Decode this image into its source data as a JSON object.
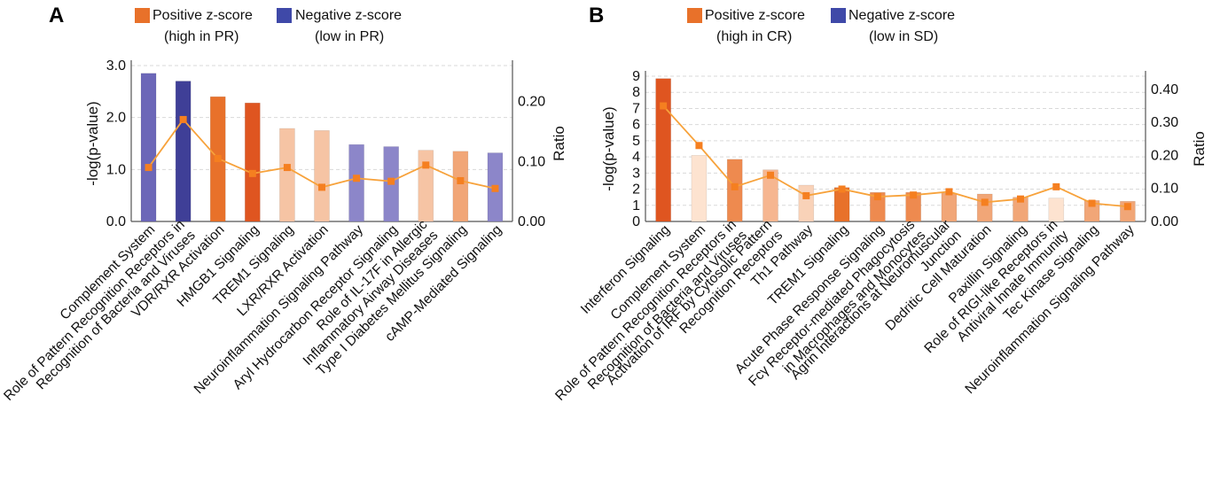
{
  "panels": [
    {
      "letter": "A",
      "legend": {
        "positive": {
          "line1": "Positive z-score",
          "line2": "(high in PR)"
        },
        "negative": {
          "line1": "Negative z-score",
          "line2": "(low in PR)"
        }
      }
    },
    {
      "letter": "B",
      "legend": {
        "positive": {
          "line1": "Positive z-score",
          "line2": "(high in CR)"
        },
        "negative": {
          "line1": "Negative z-score",
          "line2": "(low in SD)"
        }
      }
    }
  ],
  "colors": {
    "positive_legend": "#e8712a",
    "negative_legend": "#3f49a8",
    "ratio_line": "#f7a23b",
    "ratio_marker": "#f57f20"
  },
  "chart_data": [
    {
      "type": "bar",
      "ylabel": "-log(p-value)",
      "y2label": "Ratio",
      "ylim": [
        0,
        3.0
      ],
      "yticks": [
        "0.0",
        "1.0",
        "2.0",
        "3.0"
      ],
      "y2lim": [
        0,
        0.26
      ],
      "y2ticks": [
        "0.00",
        "0.10",
        "0.20"
      ],
      "grid": true,
      "categories": [
        [
          "Complement System"
        ],
        [
          "Role of Pattern Recognition Receptors in",
          "Recognition of Bacteria and Viruses"
        ],
        [
          "VDR/RXR Activation"
        ],
        [
          "HMGB1 Signaling"
        ],
        [
          "TREM1 Signaling"
        ],
        [
          "LXR/RXR Activation"
        ],
        [
          "Neuroinflammation Signaling Pathway"
        ],
        [
          "Aryl Hydrocarbon Receptor Signaling"
        ],
        [
          "Role of IL-17F in Allergic",
          "Inflammatory Airway Diseases"
        ],
        [
          "Type I Diabetes Mellitus Signaling"
        ],
        [
          "cAMP-Mediated Signaling"
        ]
      ],
      "series": [
        {
          "name": "-log(p-value)",
          "kind": "bar",
          "values": [
            2.85,
            2.7,
            2.4,
            2.28,
            1.79,
            1.75,
            1.48,
            1.44,
            1.37,
            1.35,
            1.32
          ],
          "colors": [
            "#6c67b8",
            "#3f3f97",
            "#e8712a",
            "#df5520",
            "#f6c4a4",
            "#f6c4a4",
            "#8c86c9",
            "#8c86c9",
            "#f6c4a4",
            "#f1a677",
            "#8c86c9"
          ]
        },
        {
          "name": "Ratio",
          "kind": "line",
          "values": [
            0.09,
            0.17,
            0.105,
            0.08,
            0.09,
            0.057,
            0.072,
            0.067,
            0.094,
            0.068,
            0.055
          ]
        }
      ]
    },
    {
      "type": "bar",
      "ylabel": "-log(p-value)",
      "y2label": "Ratio",
      "ylim": [
        0,
        9
      ],
      "yticks": [
        "0",
        "1",
        "2",
        "3",
        "4",
        "5",
        "6",
        "7",
        "8",
        "9"
      ],
      "y2lim": [
        0,
        0.44
      ],
      "y2ticks": [
        "0.00",
        "0.10",
        "0.20",
        "0.30",
        "0.40"
      ],
      "grid": true,
      "categories": [
        [
          "Interferon Signaling"
        ],
        [
          "Complement System"
        ],
        [
          "Role of Pattern Recognition Receptors in",
          "Recognition of Bacteria and Viruses"
        ],
        [
          "Activation of IRF by Cytosolic Pattern",
          "Recognition Receptors"
        ],
        [
          "Th1 Pathway"
        ],
        [
          "TREM1 Signaling"
        ],
        [
          "Acute Phase Response Signaling"
        ],
        [
          "Fcγ Receptor-mediated Phagocytosis",
          "in Macrophages and Monocytes"
        ],
        [
          "Agrin Interactions at Neuromuscular",
          "Junction"
        ],
        [
          "Dedritic Cell Maturation"
        ],
        [
          "Paxillin Signaling"
        ],
        [
          "Role of RIGI-like Receptors in",
          "Antiviral Innate Immunity"
        ],
        [
          "Tec Kinase Signaling"
        ],
        [
          "Neuroinflammation Signaling Pathway"
        ]
      ],
      "series": [
        {
          "name": "-log(p-value)",
          "kind": "bar",
          "values": [
            8.85,
            4.1,
            3.85,
            3.2,
            2.25,
            2.1,
            1.8,
            1.8,
            1.75,
            1.7,
            1.5,
            1.45,
            1.3,
            1.25
          ],
          "colors": [
            "#df5520",
            "#fde3d0",
            "#ee8a4f",
            "#f6b690",
            "#f9d2b8",
            "#e8712a",
            "#ee8a4f",
            "#ee8a4f",
            "#f1a677",
            "#f1a677",
            "#f1a677",
            "#fde3d0",
            "#f1a677",
            "#f1a677"
          ]
        },
        {
          "name": "Ratio",
          "kind": "line",
          "values": [
            0.35,
            0.23,
            0.105,
            0.14,
            0.078,
            0.098,
            0.075,
            0.08,
            0.09,
            0.058,
            0.068,
            0.105,
            0.055,
            0.045
          ]
        }
      ]
    }
  ]
}
